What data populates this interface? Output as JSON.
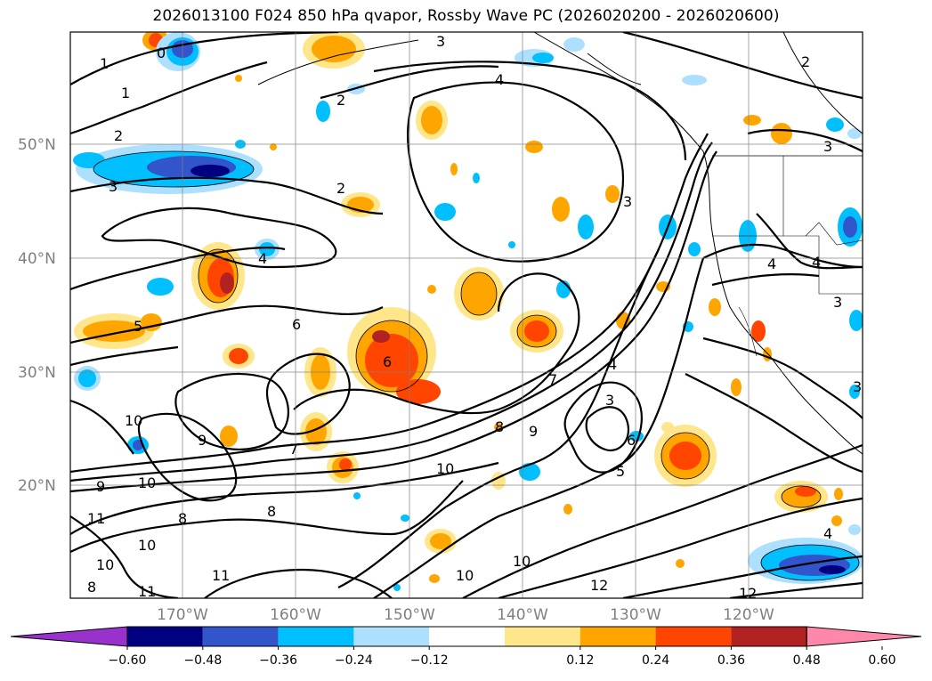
{
  "title": "2026013100 F024 850 hPa qvapor, Rossby Wave PC (2026020200 - 2026020600)",
  "map": {
    "lat_labels": [
      "50°N",
      "40°N",
      "30°N",
      "20°N"
    ],
    "lon_labels": [
      "170°W",
      "160°W",
      "150°W",
      "140°W",
      "130°W",
      "120°W"
    ],
    "contour_labels": [
      "1",
      "0",
      "1",
      "2",
      "3",
      "2",
      "3",
      "4",
      "2",
      "3",
      "4",
      "6",
      "5",
      "6",
      "7",
      "8",
      "9",
      "10",
      "10",
      "9",
      "7",
      "8",
      "8",
      "9",
      "10",
      "11",
      "10",
      "11",
      "8",
      "10",
      "11",
      "12",
      "12",
      "10",
      "10",
      "3",
      "4",
      "5",
      "6",
      "4",
      "3",
      "4",
      "3",
      "2",
      "4",
      "3"
    ]
  },
  "colorbar": {
    "ticks": [
      "−0.60",
      "−0.48",
      "−0.36",
      "−0.24",
      "−0.12",
      "0.12",
      "0.24",
      "0.36",
      "0.48",
      "0.60"
    ],
    "colors": [
      "#9932CC",
      "#000080",
      "#3355CC",
      "#00BFFF",
      "#ADDFFF",
      "#FFFFFF",
      "#FFE68A",
      "#FFA500",
      "#FF4500",
      "#B22222",
      "#FF88AA"
    ]
  },
  "palette": {
    "neg_light": "#ADDFFF",
    "neg_mid": "#00BFFF",
    "neg_dark": "#3355CC",
    "neg_darkest": "#000080",
    "pos_light": "#FFE68A",
    "pos_mid": "#FFA500",
    "pos_dark": "#FF4500",
    "pos_darkest": "#B22222",
    "ocean": "#FFFFFF",
    "grid": "#808080"
  }
}
